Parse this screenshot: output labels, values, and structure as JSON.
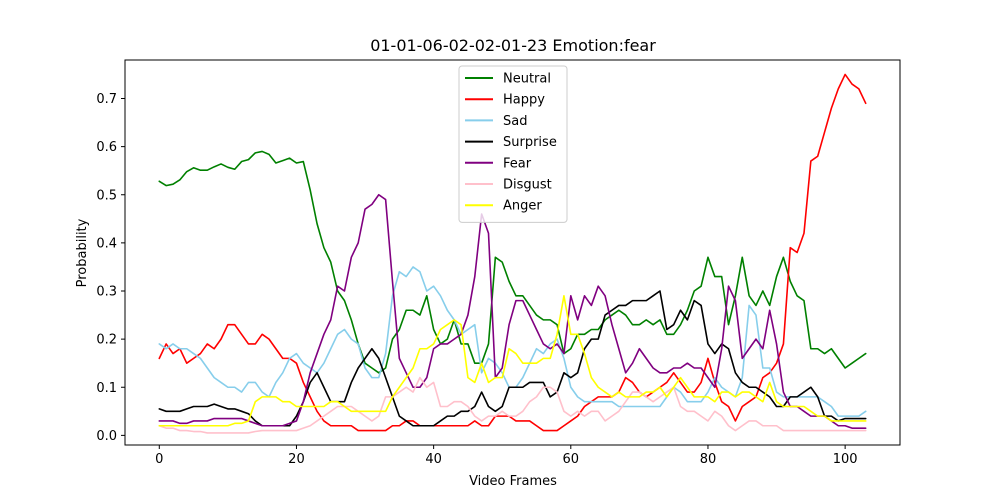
{
  "chart_data": {
    "type": "line",
    "title": "01-01-06-02-02-01-23 Emotion:fear",
    "xlabel": "Video Frames",
    "ylabel": "Probability",
    "xlim": [
      -5,
      108
    ],
    "ylim": [
      -0.02,
      0.78
    ],
    "xticks": [
      0,
      20,
      40,
      60,
      80,
      100
    ],
    "yticks": [
      0.0,
      0.1,
      0.2,
      0.3,
      0.4,
      0.5,
      0.6,
      0.7
    ],
    "ytick_labels": [
      "0.0",
      "0.1",
      "0.2",
      "0.3",
      "0.4",
      "0.5",
      "0.6",
      "0.7"
    ],
    "grid": false,
    "legend": "upper-center",
    "series": [
      {
        "name": "Neutral",
        "color": "#008000",
        "values": [
          0.528,
          0.519,
          0.522,
          0.531,
          0.548,
          0.556,
          0.551,
          0.551,
          0.558,
          0.564,
          0.557,
          0.553,
          0.569,
          0.573,
          0.587,
          0.59,
          0.584,
          0.566,
          0.571,
          0.576,
          0.566,
          0.569,
          0.51,
          0.44,
          0.39,
          0.36,
          0.3,
          0.28,
          0.24,
          0.19,
          0.15,
          0.14,
          0.13,
          0.14,
          0.2,
          0.22,
          0.26,
          0.26,
          0.25,
          0.29,
          0.22,
          0.19,
          0.2,
          0.24,
          0.19,
          0.19,
          0.15,
          0.15,
          0.19,
          0.37,
          0.36,
          0.32,
          0.29,
          0.29,
          0.27,
          0.25,
          0.24,
          0.24,
          0.23,
          0.17,
          0.18,
          0.21,
          0.21,
          0.22,
          0.22,
          0.24,
          0.25,
          0.26,
          0.25,
          0.23,
          0.23,
          0.24,
          0.23,
          0.24,
          0.21,
          0.21,
          0.23,
          0.26,
          0.3,
          0.31,
          0.37,
          0.33,
          0.33,
          0.23,
          0.29,
          0.37,
          0.29,
          0.27,
          0.3,
          0.27,
          0.33,
          0.37,
          0.32,
          0.29,
          0.28,
          0.18,
          0.18,
          0.17,
          0.18,
          0.16,
          0.14,
          0.15,
          0.16,
          0.17
        ]
      },
      {
        "name": "Happy",
        "color": "#ff0000",
        "values": [
          0.16,
          0.19,
          0.17,
          0.18,
          0.15,
          0.16,
          0.17,
          0.19,
          0.18,
          0.2,
          0.23,
          0.23,
          0.21,
          0.19,
          0.19,
          0.21,
          0.2,
          0.18,
          0.16,
          0.16,
          0.15,
          0.11,
          0.08,
          0.05,
          0.03,
          0.02,
          0.02,
          0.02,
          0.02,
          0.01,
          0.01,
          0.01,
          0.01,
          0.01,
          0.02,
          0.02,
          0.03,
          0.03,
          0.02,
          0.02,
          0.02,
          0.02,
          0.02,
          0.02,
          0.02,
          0.02,
          0.03,
          0.02,
          0.02,
          0.04,
          0.04,
          0.04,
          0.03,
          0.03,
          0.03,
          0.02,
          0.01,
          0.01,
          0.01,
          0.02,
          0.03,
          0.04,
          0.06,
          0.07,
          0.08,
          0.08,
          0.08,
          0.09,
          0.12,
          0.11,
          0.09,
          0.08,
          0.09,
          0.1,
          0.11,
          0.13,
          0.11,
          0.09,
          0.09,
          0.11,
          0.16,
          0.11,
          0.07,
          0.06,
          0.03,
          0.06,
          0.07,
          0.08,
          0.12,
          0.13,
          0.15,
          0.19,
          0.39,
          0.38,
          0.42,
          0.57,
          0.58,
          0.63,
          0.68,
          0.72,
          0.75,
          0.73,
          0.72,
          0.69
        ]
      },
      {
        "name": "Sad",
        "color": "#87ceeb",
        "values": [
          0.19,
          0.18,
          0.19,
          0.18,
          0.18,
          0.17,
          0.16,
          0.14,
          0.12,
          0.11,
          0.1,
          0.1,
          0.09,
          0.11,
          0.11,
          0.09,
          0.08,
          0.11,
          0.13,
          0.16,
          0.17,
          0.15,
          0.14,
          0.13,
          0.15,
          0.18,
          0.21,
          0.22,
          0.2,
          0.19,
          0.14,
          0.12,
          0.12,
          0.17,
          0.29,
          0.34,
          0.33,
          0.35,
          0.34,
          0.3,
          0.31,
          0.29,
          0.26,
          0.24,
          0.21,
          0.22,
          0.23,
          0.13,
          0.16,
          0.15,
          0.13,
          0.1,
          0.1,
          0.12,
          0.15,
          0.18,
          0.17,
          0.19,
          0.2,
          0.16,
          0.1,
          0.08,
          0.07,
          0.07,
          0.07,
          0.07,
          0.07,
          0.06,
          0.06,
          0.06,
          0.06,
          0.06,
          0.06,
          0.06,
          0.08,
          0.1,
          0.09,
          0.07,
          0.07,
          0.07,
          0.09,
          0.12,
          0.1,
          0.09,
          0.08,
          0.12,
          0.27,
          0.25,
          0.14,
          0.14,
          0.09,
          0.08,
          0.08,
          0.08,
          0.08,
          0.08,
          0.08,
          0.07,
          0.06,
          0.04,
          0.04,
          0.04,
          0.04,
          0.05
        ]
      },
      {
        "name": "Surprise",
        "color": "#000000",
        "values": [
          0.055,
          0.05,
          0.05,
          0.05,
          0.055,
          0.06,
          0.06,
          0.06,
          0.065,
          0.06,
          0.055,
          0.055,
          0.05,
          0.045,
          0.03,
          0.02,
          0.02,
          0.02,
          0.02,
          0.02,
          0.04,
          0.07,
          0.11,
          0.13,
          0.1,
          0.07,
          0.07,
          0.07,
          0.11,
          0.14,
          0.16,
          0.18,
          0.16,
          0.12,
          0.08,
          0.04,
          0.03,
          0.02,
          0.02,
          0.02,
          0.02,
          0.03,
          0.04,
          0.04,
          0.05,
          0.05,
          0.06,
          0.09,
          0.06,
          0.05,
          0.06,
          0.1,
          0.1,
          0.1,
          0.11,
          0.11,
          0.11,
          0.08,
          0.09,
          0.13,
          0.12,
          0.13,
          0.18,
          0.2,
          0.2,
          0.25,
          0.26,
          0.27,
          0.27,
          0.28,
          0.28,
          0.28,
          0.29,
          0.3,
          0.22,
          0.23,
          0.26,
          0.24,
          0.28,
          0.27,
          0.19,
          0.17,
          0.19,
          0.18,
          0.13,
          0.11,
          0.1,
          0.1,
          0.09,
          0.08,
          0.06,
          0.06,
          0.08,
          0.08,
          0.09,
          0.1,
          0.08,
          0.04,
          0.04,
          0.03,
          0.035,
          0.035,
          0.035,
          0.035
        ]
      },
      {
        "name": "Fear",
        "color": "#800080",
        "values": [
          0.03,
          0.03,
          0.03,
          0.025,
          0.025,
          0.03,
          0.03,
          0.03,
          0.035,
          0.035,
          0.035,
          0.035,
          0.035,
          0.03,
          0.025,
          0.02,
          0.02,
          0.02,
          0.02,
          0.025,
          0.03,
          0.07,
          0.13,
          0.17,
          0.21,
          0.24,
          0.31,
          0.3,
          0.37,
          0.4,
          0.47,
          0.48,
          0.5,
          0.49,
          0.32,
          0.16,
          0.13,
          0.1,
          0.1,
          0.12,
          0.18,
          0.19,
          0.19,
          0.2,
          0.21,
          0.25,
          0.33,
          0.46,
          0.42,
          0.12,
          0.14,
          0.23,
          0.28,
          0.28,
          0.25,
          0.22,
          0.19,
          0.18,
          0.19,
          0.17,
          0.29,
          0.24,
          0.29,
          0.27,
          0.31,
          0.29,
          0.23,
          0.18,
          0.13,
          0.15,
          0.18,
          0.16,
          0.14,
          0.13,
          0.13,
          0.14,
          0.14,
          0.15,
          0.14,
          0.14,
          0.12,
          0.1,
          0.18,
          0.31,
          0.28,
          0.16,
          0.18,
          0.2,
          0.18,
          0.26,
          0.19,
          0.09,
          0.06,
          0.06,
          0.05,
          0.04,
          0.04,
          0.04,
          0.03,
          0.02,
          0.02,
          0.015,
          0.015,
          0.015
        ]
      },
      {
        "name": "Disgust",
        "color": "#ffc0cb",
        "values": [
          0.02,
          0.015,
          0.015,
          0.01,
          0.01,
          0.008,
          0.008,
          0.005,
          0.005,
          0.005,
          0.005,
          0.005,
          0.005,
          0.005,
          0.008,
          0.01,
          0.01,
          0.01,
          0.01,
          0.01,
          0.01,
          0.015,
          0.02,
          0.03,
          0.04,
          0.05,
          0.06,
          0.06,
          0.06,
          0.05,
          0.04,
          0.03,
          0.04,
          0.08,
          0.08,
          0.09,
          0.1,
          0.09,
          0.12,
          0.1,
          0.11,
          0.06,
          0.06,
          0.07,
          0.07,
          0.06,
          0.04,
          0.03,
          0.04,
          0.04,
          0.05,
          0.04,
          0.04,
          0.05,
          0.07,
          0.08,
          0.1,
          0.1,
          0.09,
          0.05,
          0.04,
          0.05,
          0.04,
          0.05,
          0.05,
          0.03,
          0.04,
          0.05,
          0.07,
          0.09,
          0.09,
          0.08,
          0.07,
          0.08,
          0.09,
          0.1,
          0.06,
          0.05,
          0.05,
          0.04,
          0.03,
          0.05,
          0.04,
          0.02,
          0.01,
          0.02,
          0.03,
          0.03,
          0.02,
          0.02,
          0.02,
          0.01,
          0.01,
          0.01,
          0.01,
          0.01,
          0.01,
          0.01,
          0.01,
          0.01,
          0.01,
          0.01,
          0.01,
          0.01
        ]
      },
      {
        "name": "Anger",
        "color": "#ffff00",
        "values": [
          0.02,
          0.02,
          0.02,
          0.02,
          0.02,
          0.02,
          0.02,
          0.02,
          0.02,
          0.02,
          0.02,
          0.025,
          0.025,
          0.03,
          0.07,
          0.08,
          0.08,
          0.08,
          0.07,
          0.07,
          0.06,
          0.06,
          0.06,
          0.06,
          0.06,
          0.07,
          0.07,
          0.06,
          0.05,
          0.05,
          0.05,
          0.05,
          0.05,
          0.05,
          0.08,
          0.1,
          0.12,
          0.14,
          0.18,
          0.18,
          0.19,
          0.22,
          0.23,
          0.24,
          0.23,
          0.12,
          0.11,
          0.15,
          0.11,
          0.12,
          0.12,
          0.18,
          0.17,
          0.15,
          0.15,
          0.15,
          0.16,
          0.16,
          0.21,
          0.29,
          0.21,
          0.21,
          0.17,
          0.12,
          0.1,
          0.09,
          0.08,
          0.09,
          0.08,
          0.08,
          0.08,
          0.09,
          0.09,
          0.1,
          0.08,
          0.1,
          0.12,
          0.1,
          0.08,
          0.08,
          0.08,
          0.07,
          0.09,
          0.09,
          0.08,
          0.09,
          0.09,
          0.08,
          0.07,
          0.11,
          0.07,
          0.06,
          0.06,
          0.06,
          0.06,
          0.05,
          0.04,
          0.04,
          0.03,
          0.03,
          0.03,
          0.03,
          0.03,
          0.03
        ]
      }
    ]
  }
}
